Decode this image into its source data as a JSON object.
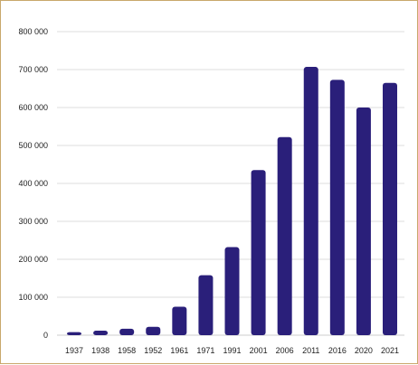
{
  "chart_data": {
    "type": "bar",
    "categories": [
      "1937",
      "1938",
      "1958",
      "1952",
      "1961",
      "1971",
      "1991",
      "2001",
      "2006",
      "2011",
      "2016",
      "2020",
      "2021"
    ],
    "values": [
      8000,
      12000,
      17000,
      22000,
      75000,
      158000,
      232000,
      435000,
      522000,
      707000,
      673000,
      600000,
      665000
    ],
    "ylim": [
      0,
      800000
    ],
    "yticks": [
      0,
      100000,
      200000,
      300000,
      400000,
      500000,
      600000,
      700000,
      800000
    ],
    "ytick_labels": [
      "0",
      "100 000",
      "200 000",
      "300 000",
      "400 000",
      "500 000",
      "600 000",
      "700 000",
      "800 000"
    ],
    "grid": true,
    "title": "",
    "xlabel": "",
    "ylabel": "",
    "bar_color": "#2a1f7a"
  }
}
